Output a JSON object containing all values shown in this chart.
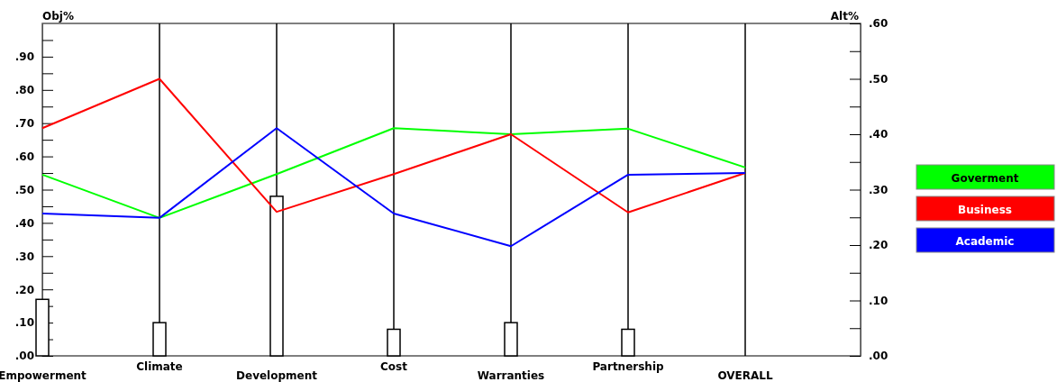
{
  "chart_data": {
    "type": "line",
    "ylabel": "Obj%",
    "y2label": "Alt%",
    "categories": [
      "Empowerment",
      "Climate",
      "Development",
      "Cost",
      "Warranties",
      "Partnership",
      "OVERALL"
    ],
    "series": [
      {
        "type": "bar",
        "color": "#ffffff",
        "values": [
          0.17,
          0.1,
          0.48,
          0.08,
          0.1,
          0.08,
          null
        ]
      },
      {
        "name": "Goverment",
        "color": "#00ff00",
        "axis": "y2",
        "values": [
          0.327,
          0.249,
          0.328,
          0.411,
          0.4,
          0.41,
          0.34
        ]
      },
      {
        "name": "Business",
        "color": "#ff0000",
        "axis": "y2",
        "values": [
          0.411,
          0.5,
          0.26,
          0.328,
          0.4,
          0.259,
          0.33
        ]
      },
      {
        "name": "Academic",
        "color": "#0000ff",
        "axis": "y2",
        "values": [
          0.257,
          0.249,
          0.411,
          0.257,
          0.198,
          0.327,
          0.33
        ]
      }
    ],
    "ylim": [
      0,
      1
    ],
    "yticks": [
      {
        "value": 0,
        "label": ".00"
      },
      {
        "value": 0.05,
        "label": null
      },
      {
        "value": 0.1,
        "label": ".10"
      },
      {
        "value": 0.15,
        "label": null
      },
      {
        "value": 0.2,
        "label": ".20"
      },
      {
        "value": 0.25,
        "label": null
      },
      {
        "value": 0.3,
        "label": ".30"
      },
      {
        "value": 0.35,
        "label": null
      },
      {
        "value": 0.4,
        "label": ".40"
      },
      {
        "value": 0.45,
        "label": null
      },
      {
        "value": 0.5,
        "label": ".50"
      },
      {
        "value": 0.55,
        "label": null
      },
      {
        "value": 0.6,
        "label": ".60"
      },
      {
        "value": 0.65,
        "label": null
      },
      {
        "value": 0.7,
        "label": ".70"
      },
      {
        "value": 0.75,
        "label": null
      },
      {
        "value": 0.8,
        "label": ".80"
      },
      {
        "value": 0.85,
        "label": null
      },
      {
        "value": 0.9,
        "label": ".90"
      },
      {
        "value": 0.95,
        "label": null
      }
    ],
    "y2lim": [
      0,
      0.6
    ],
    "y2ticks": [
      {
        "value": 0,
        "label": ".00"
      },
      {
        "value": 0.05,
        "label": null
      },
      {
        "value": 0.1,
        "label": ".10"
      },
      {
        "value": 0.15,
        "label": null
      },
      {
        "value": 0.2,
        "label": ".20"
      },
      {
        "value": 0.25,
        "label": null
      },
      {
        "value": 0.3,
        "label": ".30"
      },
      {
        "value": 0.35,
        "label": null
      },
      {
        "value": 0.4,
        "label": ".40"
      },
      {
        "value": 0.45,
        "label": null
      },
      {
        "value": 0.5,
        "label": ".50"
      },
      {
        "value": 0.55,
        "label": null
      },
      {
        "value": 0.6,
        "label": ".60"
      }
    ],
    "grid": "x",
    "legend": "right",
    "marker": "none",
    "line_style": "solid"
  }
}
